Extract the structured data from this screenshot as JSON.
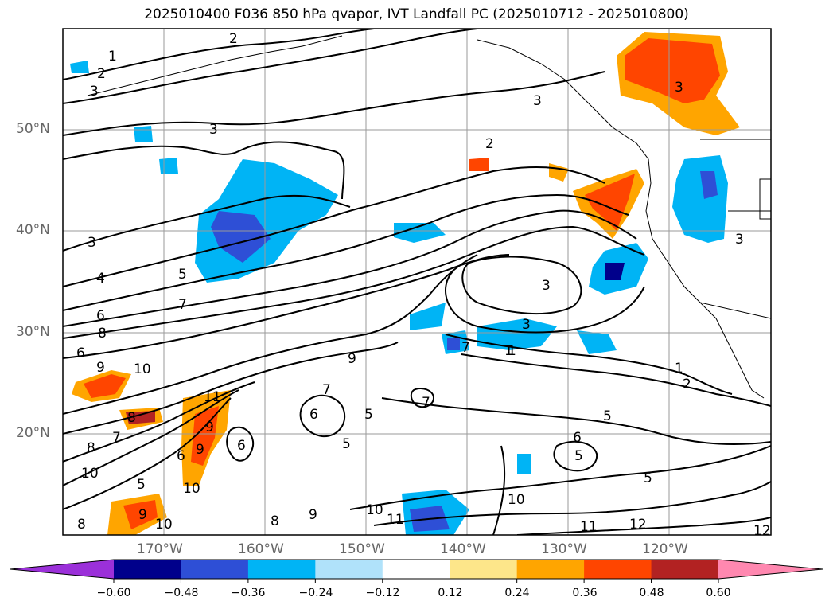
{
  "title": "2025010400 F036 850 hPa qvapor, IVT Landfall PC (2025010712 - 2025010800)",
  "lat_labels": [
    "50°N",
    "40°N",
    "30°N",
    "20°N"
  ],
  "lon_labels": [
    "170°W",
    "160°W",
    "150°W",
    "140°W",
    "130°W",
    "120°W"
  ],
  "colorbar": {
    "colors": [
      "#9b30d9",
      "#00008b",
      "#2e4fd6",
      "#00b4f5",
      "#b0e2fa",
      "#ffffff",
      "#fde68a",
      "#ffa500",
      "#ff4500",
      "#b22222",
      "#ff88b0"
    ],
    "tick_labels": [
      "−0.60",
      "−0.48",
      "−0.36",
      "−0.24",
      "−0.12",
      "0.12",
      "0.24",
      "0.36",
      "0.48",
      "0.60"
    ]
  },
  "contour_labels": [
    {
      "text": "1"
    },
    {
      "text": "2"
    },
    {
      "text": "3"
    },
    {
      "text": "2"
    },
    {
      "text": "3"
    },
    {
      "text": "3"
    },
    {
      "text": "2"
    },
    {
      "text": "3"
    },
    {
      "text": "4"
    },
    {
      "text": "5"
    },
    {
      "text": "7"
    },
    {
      "text": "6"
    },
    {
      "text": "8"
    },
    {
      "text": "6"
    },
    {
      "text": "9"
    },
    {
      "text": "10"
    },
    {
      "text": "11"
    },
    {
      "text": "8"
    },
    {
      "text": "9"
    },
    {
      "text": "7"
    },
    {
      "text": "6"
    },
    {
      "text": "9"
    },
    {
      "text": "10"
    },
    {
      "text": "8"
    },
    {
      "text": "10"
    },
    {
      "text": "8"
    },
    {
      "text": "9"
    },
    {
      "text": "10"
    },
    {
      "text": "5"
    },
    {
      "text": "9"
    },
    {
      "text": "7"
    },
    {
      "text": "6"
    },
    {
      "text": "5"
    },
    {
      "text": "6"
    },
    {
      "text": "7"
    },
    {
      "text": "3"
    },
    {
      "text": "3"
    },
    {
      "text": "1"
    },
    {
      "text": "7"
    },
    {
      "text": "3"
    },
    {
      "text": "1"
    },
    {
      "text": "2"
    },
    {
      "text": "5"
    },
    {
      "text": "6"
    },
    {
      "text": "5"
    },
    {
      "text": "5"
    },
    {
      "text": "10"
    },
    {
      "text": "11"
    },
    {
      "text": "10"
    },
    {
      "text": "11"
    },
    {
      "text": "12"
    },
    {
      "text": "12"
    },
    {
      "text": "9"
    },
    {
      "text": "8"
    },
    {
      "text": "5"
    },
    {
      "text": "1"
    },
    {
      "text": "3"
    }
  ]
}
